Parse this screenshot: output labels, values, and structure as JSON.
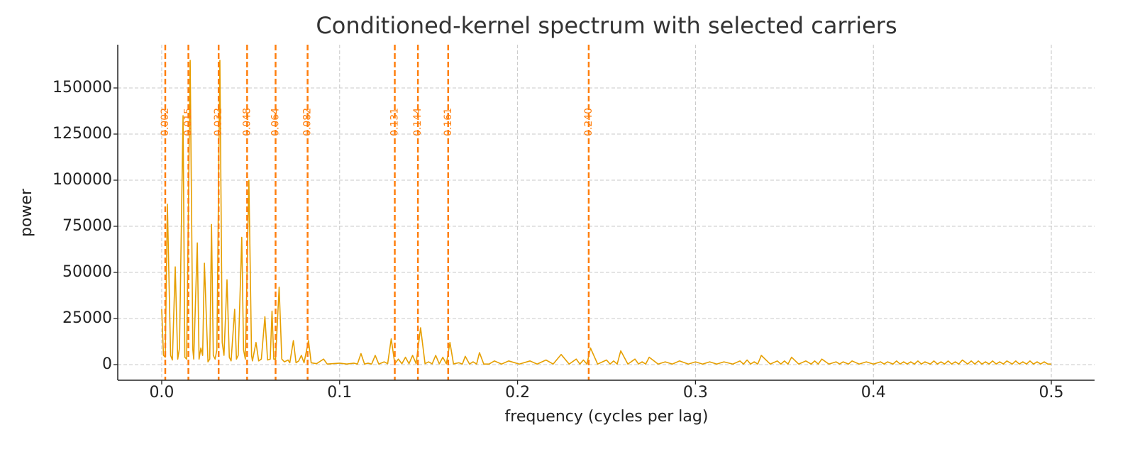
{
  "chart_data": {
    "type": "line",
    "title": "Conditioned-kernel spectrum with selected carriers",
    "xlabel": "frequency (cycles per lag)",
    "ylabel": "power",
    "xlim": [
      -0.0247,
      0.5243
    ],
    "ylim": [
      -8460,
      173460
    ],
    "xticks": [
      {
        "value": 0,
        "label": "0.0"
      },
      0.1,
      0.2,
      0.3,
      0.4,
      0.5
    ],
    "yticks": [
      0,
      25000,
      50000,
      75000,
      100000,
      125000,
      150000
    ],
    "grid": true,
    "carrier_color": "#ff7f0e",
    "carriers": [
      {
        "value": 0.002,
        "label": "0.002"
      },
      {
        "value": 0.015,
        "label": "0.015"
      },
      {
        "value": 0.032,
        "label": "0.032"
      },
      {
        "value": 0.048,
        "label": "0.048"
      },
      {
        "value": 0.064,
        "label": "0.064"
      },
      {
        "value": 0.082,
        "label": "0.082"
      },
      {
        "value": 0.131,
        "label": "0.131"
      },
      {
        "value": 0.144,
        "label": "0.144"
      },
      {
        "value": 0.161,
        "label": "0.161"
      },
      {
        "value": 0.24,
        "label": "0.240"
      }
    ],
    "x": [
      0.0,
      0.001,
      0.002,
      0.0032,
      0.005,
      0.006,
      0.0076,
      0.009,
      0.01,
      0.012,
      0.013,
      0.014,
      0.016,
      0.0175,
      0.018,
      0.02,
      0.021,
      0.022,
      0.023,
      0.024,
      0.026,
      0.027,
      0.028,
      0.029,
      0.03,
      0.031,
      0.0327,
      0.034,
      0.035,
      0.0367,
      0.038,
      0.039,
      0.041,
      0.042,
      0.043,
      0.045,
      0.046,
      0.047,
      0.049,
      0.0505,
      0.051,
      0.053,
      0.0545,
      0.056,
      0.058,
      0.0595,
      0.061,
      0.062,
      0.063,
      0.064,
      0.066,
      0.0675,
      0.069,
      0.071,
      0.072,
      0.074,
      0.0755,
      0.077,
      0.0785,
      0.08,
      0.0825,
      0.084,
      0.087,
      0.091,
      0.093,
      0.1,
      0.104,
      0.108,
      0.11,
      0.112,
      0.114,
      0.116,
      0.118,
      0.12,
      0.122,
      0.125,
      0.127,
      0.129,
      0.131,
      0.133,
      0.135,
      0.137,
      0.139,
      0.141,
      0.143,
      0.1455,
      0.148,
      0.15,
      0.152,
      0.154,
      0.156,
      0.158,
      0.16,
      0.162,
      0.164,
      0.167,
      0.169,
      0.1706,
      0.173,
      0.175,
      0.177,
      0.1786,
      0.181,
      0.184,
      0.187,
      0.191,
      0.195,
      0.201,
      0.207,
      0.211,
      0.216,
      0.22,
      0.2245,
      0.229,
      0.233,
      0.235,
      0.237,
      0.239,
      0.241,
      0.245,
      0.25,
      0.252,
      0.254,
      0.256,
      0.258,
      0.262,
      0.266,
      0.268,
      0.27,
      0.272,
      0.274,
      0.279,
      0.283,
      0.287,
      0.291,
      0.296,
      0.3,
      0.304,
      0.308,
      0.312,
      0.316,
      0.321,
      0.325,
      0.327,
      0.329,
      0.331,
      0.333,
      0.335,
      0.337,
      0.342,
      0.346,
      0.348,
      0.35,
      0.352,
      0.354,
      0.358,
      0.362,
      0.365,
      0.367,
      0.369,
      0.371,
      0.375,
      0.379,
      0.381,
      0.383,
      0.386,
      0.388,
      0.392,
      0.396,
      0.4,
      0.404,
      0.406,
      0.408,
      0.411,
      0.413,
      0.415,
      0.417,
      0.419,
      0.421,
      0.423,
      0.425,
      0.427,
      0.429,
      0.432,
      0.434,
      0.436,
      0.438,
      0.44,
      0.442,
      0.444,
      0.446,
      0.448,
      0.45,
      0.453,
      0.455,
      0.457,
      0.459,
      0.461,
      0.463,
      0.465,
      0.467,
      0.469,
      0.471,
      0.473,
      0.475,
      0.478,
      0.48,
      0.482,
      0.484,
      0.486,
      0.488,
      0.49,
      0.492,
      0.494,
      0.496,
      0.498,
      0.5
    ],
    "series": [
      {
        "color": "#e69f00",
        "values": [
          30000,
          5000,
          4000,
          87000,
          5000,
          2500,
          53000,
          3000,
          9000,
          135000,
          4000,
          3000,
          165000,
          8000,
          3000,
          66000,
          3000,
          9000,
          5000,
          55000,
          1500,
          3000,
          76000,
          5000,
          3000,
          8000,
          165000,
          12000,
          5000,
          46000,
          4000,
          2000,
          30000,
          3000,
          5000,
          69000,
          8000,
          3000,
          100000,
          5000,
          2000,
          12000,
          2000,
          3000,
          26000,
          2500,
          3000,
          29000,
          3000,
          3000,
          42000,
          3000,
          1500,
          2500,
          1000,
          13000,
          1000,
          2000,
          5000,
          1000,
          13000,
          1000,
          500,
          3000,
          300,
          800,
          300,
          800,
          300,
          6000,
          300,
          800,
          300,
          5000,
          300,
          1500,
          500,
          14000,
          500,
          3000,
          500,
          4000,
          500,
          5000,
          500,
          20000,
          500,
          1500,
          400,
          5000,
          400,
          4000,
          400,
          12000,
          400,
          1000,
          300,
          4500,
          300,
          1500,
          300,
          6500,
          300,
          300,
          2000,
          300,
          2000,
          300,
          2000,
          300,
          2500,
          300,
          5500,
          300,
          3000,
          300,
          2500,
          300,
          9000,
          300,
          2500,
          300,
          2000,
          300,
          7500,
          300,
          3000,
          300,
          1500,
          300,
          4000,
          300,
          1500,
          300,
          2000,
          300,
          1500,
          300,
          1500,
          300,
          1500,
          300,
          2000,
          300,
          2500,
          300,
          1500,
          300,
          5000,
          300,
          2000,
          300,
          2000,
          300,
          4000,
          300,
          2000,
          300,
          2000,
          300,
          3000,
          300,
          1500,
          300,
          1500,
          300,
          2000,
          300,
          1500,
          300,
          1500,
          300,
          1500,
          300,
          2000,
          300,
          1500,
          300,
          1500,
          300,
          2000,
          300,
          1500,
          300,
          2000,
          300,
          1500,
          300,
          2000,
          300,
          1500,
          300,
          2500,
          300,
          2000,
          300,
          2000,
          300,
          1500,
          300,
          2000,
          300,
          1500,
          300,
          2000,
          300,
          2000,
          300,
          1500,
          300,
          2000,
          300,
          1500,
          300,
          1500,
          300,
          300
        ]
      }
    ]
  }
}
